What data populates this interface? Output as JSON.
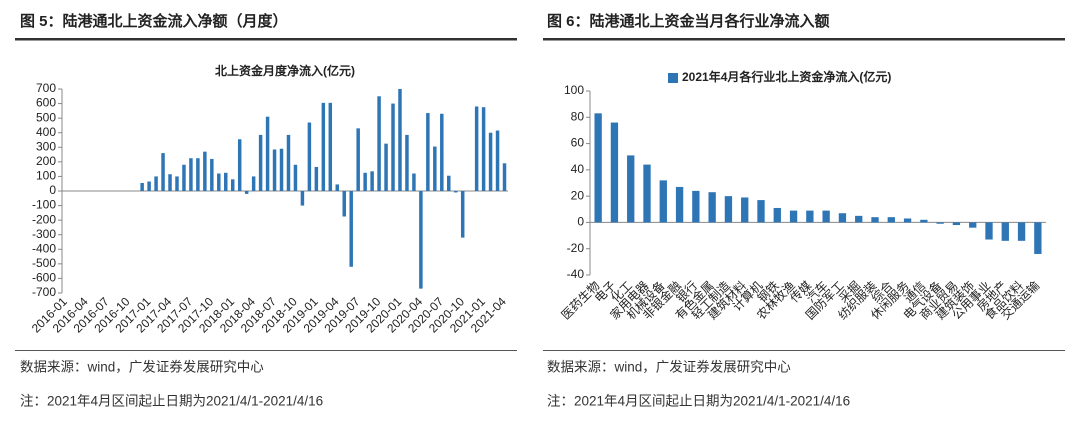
{
  "headings": [
    "图 5：陆港通北上资金流入净额（月度）",
    "图 6：陆港通北上资金当月各行业净流入额"
  ],
  "sources": [
    "数据来源：wind，广发证券发展研究中心",
    "数据来源：wind，广发证券发展研究中心"
  ],
  "notes": [
    "注：2021年4月区间起止日期为2021/4/1-2021/4/16",
    "注：2021年4月区间起止日期为2021/4/1-2021/4/16"
  ],
  "chart_data": [
    {
      "type": "bar",
      "title": "北上资金月度净流入(亿元)",
      "categories": [
        "2016-01",
        null,
        null,
        "2016-04",
        null,
        null,
        "2016-07",
        null,
        null,
        "2016-10",
        null,
        null,
        "2017-01",
        null,
        null,
        "2017-04",
        null,
        null,
        "2017-07",
        null,
        null,
        "2017-10",
        null,
        null,
        "2018-01",
        null,
        null,
        "2018-04",
        null,
        null,
        "2018-07",
        null,
        null,
        "2018-10",
        null,
        null,
        "2019-01",
        null,
        null,
        "2019-04",
        null,
        null,
        "2019-07",
        null,
        null,
        "2019-10",
        null,
        null,
        "2020-01",
        null,
        null,
        "2020-04",
        null,
        null,
        "2020-07",
        null,
        null,
        "2020-10",
        null,
        null,
        "2021-01",
        null,
        null,
        "2021-04"
      ],
      "values": [
        null,
        null,
        null,
        null,
        null,
        null,
        null,
        null,
        null,
        null,
        null,
        55,
        65,
        100,
        260,
        115,
        100,
        180,
        225,
        225,
        270,
        220,
        120,
        125,
        80,
        355,
        -20,
        100,
        385,
        510,
        285,
        290,
        385,
        180,
        -100,
        470,
        165,
        605,
        605,
        45,
        -175,
        -520,
        430,
        125,
        135,
        650,
        325,
        600,
        700,
        385,
        120,
        -670,
        535,
        305,
        530,
        105,
        -10,
        -320,
        0,
        580,
        575,
        400,
        415,
        190
      ],
      "color": "#2e75b6",
      "ylim": [
        -700,
        700
      ],
      "yticks": [
        -700,
        -600,
        -500,
        -400,
        -300,
        -200,
        -100,
        0,
        100,
        200,
        300,
        400,
        500,
        600,
        700
      ],
      "grid": false
    },
    {
      "type": "bar",
      "legend": "top",
      "categories": [
        "医药生物",
        "电子",
        "化工",
        "家用电器",
        "机械设备",
        "非银金融",
        "银行",
        "有色金属",
        "轻工制造",
        "建筑材料",
        "计算机",
        "钢铁",
        "农林牧渔",
        "传媒",
        "汽车",
        "国防军工",
        "采掘",
        "纺织服装",
        "综合",
        "休闲服务",
        "通信",
        "电气设备",
        "商业贸易",
        "建筑装饰",
        "公用事业",
        "房地产",
        "食品饮料",
        "交通运输"
      ],
      "series": [
        {
          "name": "2021年4月各行业北上资金净流入(亿元)",
          "color": "#2e75b6",
          "values": [
            83,
            76,
            51,
            44,
            32,
            27,
            24,
            23,
            20,
            19,
            17,
            11,
            9,
            9,
            9,
            7,
            5,
            4,
            4,
            3,
            2,
            -1,
            -2,
            -4,
            -13,
            -14,
            -14,
            -24
          ]
        }
      ],
      "ylim": [
        -40,
        100
      ],
      "yticks": [
        -40,
        -20,
        0,
        20,
        40,
        60,
        80,
        100
      ],
      "grid": false
    }
  ]
}
